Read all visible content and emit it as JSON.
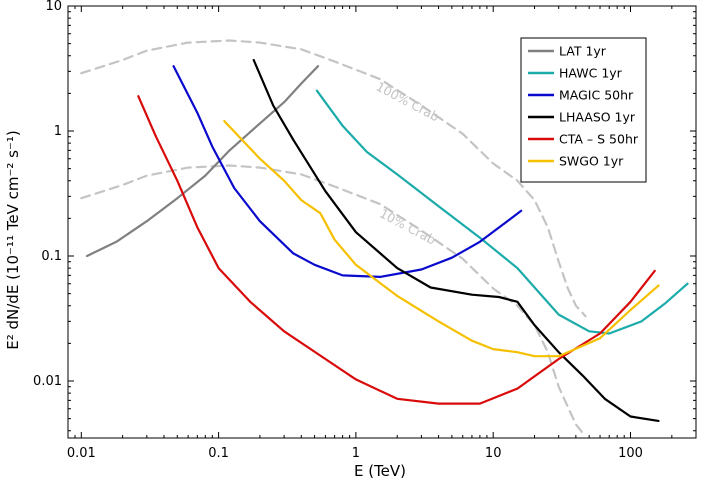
{
  "chart_data": {
    "type": "line",
    "xlabel": "E (TeV)",
    "ylabel": "E² dN/dE (10⁻¹¹ TeV cm⁻² s⁻¹)",
    "xscale": "log",
    "yscale": "log",
    "xlim": [
      0.008,
      300
    ],
    "ylim": [
      0.0035,
      10
    ],
    "x_ticks": [
      {
        "value": 0.01,
        "label": "0.01"
      },
      {
        "value": 0.1,
        "label": "0.1"
      },
      {
        "value": 1,
        "label": "1"
      },
      {
        "value": 10,
        "label": "10"
      },
      {
        "value": 100,
        "label": "100"
      }
    ],
    "y_ticks": [
      {
        "value": 0.01,
        "label": "0.01"
      },
      {
        "value": 0.1,
        "label": "0.1"
      },
      {
        "value": 1,
        "label": "1"
      },
      {
        "value": 10,
        "label": "10"
      }
    ],
    "legend_position": "top-right",
    "series": [
      {
        "name": "LAT 1yr",
        "color": "#808080",
        "dashed": false,
        "points": [
          [
            0.011,
            0.1
          ],
          [
            0.018,
            0.13
          ],
          [
            0.03,
            0.19
          ],
          [
            0.05,
            0.29
          ],
          [
            0.08,
            0.44
          ],
          [
            0.12,
            0.7
          ],
          [
            0.2,
            1.15
          ],
          [
            0.3,
            1.7
          ],
          [
            0.4,
            2.4
          ],
          [
            0.53,
            3.3
          ]
        ]
      },
      {
        "name": "HAWC 1yr",
        "color": "#1aabaa",
        "dashed": false,
        "points": [
          [
            0.52,
            2.1
          ],
          [
            0.8,
            1.1
          ],
          [
            1.2,
            0.68
          ],
          [
            2.0,
            0.45
          ],
          [
            4.0,
            0.25
          ],
          [
            8.0,
            0.14
          ],
          [
            15.0,
            0.08
          ],
          [
            30.0,
            0.034
          ],
          [
            50.0,
            0.025
          ],
          [
            70.0,
            0.024
          ],
          [
            120.0,
            0.03
          ],
          [
            180.0,
            0.042
          ],
          [
            260.0,
            0.06
          ]
        ]
      },
      {
        "name": "MAGIC 50hr",
        "color": "#0a0acf",
        "dashed": false,
        "points": [
          [
            0.047,
            3.3
          ],
          [
            0.07,
            1.4
          ],
          [
            0.09,
            0.75
          ],
          [
            0.13,
            0.35
          ],
          [
            0.2,
            0.19
          ],
          [
            0.35,
            0.105
          ],
          [
            0.5,
            0.085
          ],
          [
            0.8,
            0.07
          ],
          [
            1.5,
            0.068
          ],
          [
            3.0,
            0.078
          ],
          [
            5.0,
            0.097
          ],
          [
            8.0,
            0.13
          ],
          [
            16.0,
            0.23
          ]
        ]
      },
      {
        "name": "LHAASO 1yr",
        "color": "#000000",
        "dashed": false,
        "points": [
          [
            0.18,
            3.7
          ],
          [
            0.25,
            1.6
          ],
          [
            0.35,
            0.85
          ],
          [
            0.6,
            0.33
          ],
          [
            1.0,
            0.155
          ],
          [
            2.0,
            0.08
          ],
          [
            3.5,
            0.056
          ],
          [
            7.0,
            0.049
          ],
          [
            11.0,
            0.047
          ],
          [
            15.0,
            0.043
          ],
          [
            20.0,
            0.028
          ],
          [
            30.0,
            0.017
          ],
          [
            45.0,
            0.011
          ],
          [
            65.0,
            0.0072
          ],
          [
            100.0,
            0.0052
          ],
          [
            160.0,
            0.0048
          ]
        ]
      },
      {
        "name": "CTA – S 50hr",
        "color": "#d90a0a",
        "dashed": false,
        "points": [
          [
            0.026,
            1.9
          ],
          [
            0.035,
            0.9
          ],
          [
            0.05,
            0.4
          ],
          [
            0.07,
            0.17
          ],
          [
            0.1,
            0.08
          ],
          [
            0.17,
            0.043
          ],
          [
            0.3,
            0.025
          ],
          [
            0.6,
            0.015
          ],
          [
            1.0,
            0.0103
          ],
          [
            2.0,
            0.0072
          ],
          [
            4.0,
            0.0066
          ],
          [
            8.0,
            0.0066
          ],
          [
            15.0,
            0.0087
          ],
          [
            30.0,
            0.015
          ],
          [
            60.0,
            0.024
          ],
          [
            100.0,
            0.043
          ],
          [
            150.0,
            0.076
          ]
        ]
      },
      {
        "name": "SWGO 1yr",
        "color": "#f6c000",
        "dashed": false,
        "points": [
          [
            0.11,
            1.2
          ],
          [
            0.2,
            0.6
          ],
          [
            0.3,
            0.4
          ],
          [
            0.4,
            0.28
          ],
          [
            0.55,
            0.22
          ],
          [
            0.7,
            0.135
          ],
          [
            1.0,
            0.085
          ],
          [
            2.0,
            0.048
          ],
          [
            4.0,
            0.03
          ],
          [
            7.0,
            0.021
          ],
          [
            10.0,
            0.018
          ],
          [
            15.0,
            0.017
          ],
          [
            20.0,
            0.0158
          ],
          [
            30.0,
            0.0158
          ],
          [
            60.0,
            0.022
          ],
          [
            100.0,
            0.037
          ],
          [
            160.0,
            0.058
          ]
        ]
      },
      {
        "name": "100% Crab",
        "color": "#c4c4c4",
        "dashed": true,
        "points": [
          [
            0.01,
            2.9
          ],
          [
            0.02,
            3.7
          ],
          [
            0.03,
            4.4
          ],
          [
            0.06,
            5.1
          ],
          [
            0.12,
            5.3
          ],
          [
            0.2,
            5.1
          ],
          [
            0.4,
            4.5
          ],
          [
            0.7,
            3.6
          ],
          [
            1.5,
            2.6
          ],
          [
            3.0,
            1.6
          ],
          [
            6.0,
            0.95
          ],
          [
            10.0,
            0.55
          ],
          [
            15.0,
            0.4
          ],
          [
            20.0,
            0.28
          ],
          [
            25.0,
            0.17
          ],
          [
            30.0,
            0.09
          ],
          [
            35.0,
            0.055
          ],
          [
            40.0,
            0.04
          ],
          [
            47.0,
            0.033
          ]
        ]
      },
      {
        "name": "10% Crab",
        "color": "#c4c4c4",
        "dashed": true,
        "points": [
          [
            0.01,
            0.29
          ],
          [
            0.02,
            0.37
          ],
          [
            0.03,
            0.44
          ],
          [
            0.06,
            0.51
          ],
          [
            0.12,
            0.53
          ],
          [
            0.2,
            0.51
          ],
          [
            0.4,
            0.45
          ],
          [
            0.7,
            0.36
          ],
          [
            1.5,
            0.26
          ],
          [
            3.0,
            0.16
          ],
          [
            6.0,
            0.095
          ],
          [
            10.0,
            0.055
          ],
          [
            15.0,
            0.04
          ],
          [
            20.0,
            0.028
          ],
          [
            25.0,
            0.017
          ],
          [
            30.0,
            0.009
          ],
          [
            35.0,
            0.0062
          ],
          [
            40.0,
            0.0045
          ],
          [
            47.0,
            0.0036
          ]
        ]
      }
    ],
    "annotations": [
      {
        "text": "100% Crab",
        "x": 2.3,
        "y": 1.6,
        "rotation": 28
      },
      {
        "text": "10% Crab",
        "x": 2.3,
        "y": 0.16,
        "rotation": 28
      }
    ]
  }
}
